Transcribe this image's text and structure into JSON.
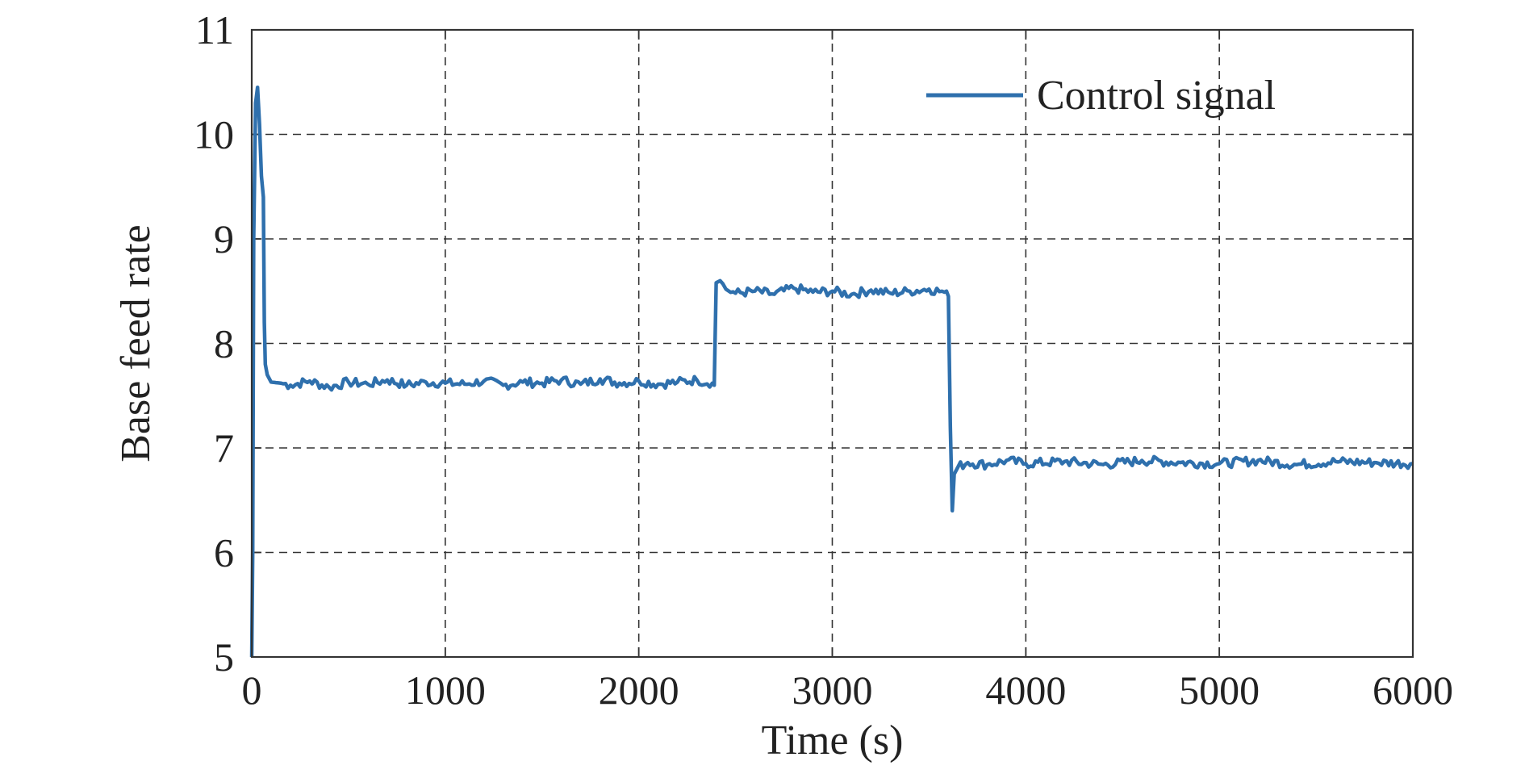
{
  "chart_data": {
    "type": "line",
    "xlabel": "Time (s)",
    "ylabel": "Base feed rate",
    "xlim": [
      0,
      6000
    ],
    "ylim": [
      5,
      11
    ],
    "grid": true,
    "legend_position": "top-right",
    "x_ticks": [
      "0",
      "1000",
      "2000",
      "3000",
      "4000",
      "5000",
      "6000"
    ],
    "y_ticks": [
      "5",
      "6",
      "7",
      "8",
      "9",
      "10",
      "11"
    ],
    "series": [
      {
        "name": "Control signal",
        "color": "#2f70ad",
        "x": [
          0,
          5,
          10,
          20,
          30,
          40,
          50,
          60,
          65,
          70,
          80,
          100,
          150,
          200,
          300,
          400,
          500,
          600,
          700,
          800,
          900,
          1000,
          1100,
          1200,
          1300,
          1400,
          1500,
          1600,
          1700,
          1800,
          1900,
          2000,
          2100,
          2200,
          2300,
          2380,
          2390,
          2400,
          2420,
          2450,
          2500,
          2600,
          2700,
          2800,
          2900,
          3000,
          3100,
          3200,
          3300,
          3400,
          3500,
          3580,
          3590,
          3600,
          3610,
          3620,
          3630,
          3650,
          3700,
          3800,
          3900,
          4000,
          4200,
          4400,
          4600,
          4800,
          5000,
          5200,
          5400,
          5600,
          5800,
          6000
        ],
        "y": [
          5.0,
          6.0,
          9.0,
          10.3,
          10.45,
          10.1,
          9.6,
          9.4,
          8.2,
          7.8,
          7.7,
          7.63,
          7.62,
          7.6,
          7.64,
          7.58,
          7.63,
          7.61,
          7.65,
          7.6,
          7.63,
          7.62,
          7.61,
          7.64,
          7.6,
          7.63,
          7.62,
          7.65,
          7.61,
          7.66,
          7.62,
          7.64,
          7.61,
          7.63,
          7.65,
          7.62,
          7.6,
          8.58,
          8.6,
          8.52,
          8.48,
          8.5,
          8.47,
          8.53,
          8.49,
          8.5,
          8.47,
          8.51,
          8.48,
          8.5,
          8.52,
          8.49,
          8.5,
          8.45,
          7.2,
          6.4,
          6.75,
          6.82,
          6.86,
          6.84,
          6.88,
          6.85,
          6.87,
          6.84,
          6.88,
          6.86,
          6.85,
          6.88,
          6.84,
          6.87,
          6.86,
          6.85
        ]
      }
    ]
  }
}
